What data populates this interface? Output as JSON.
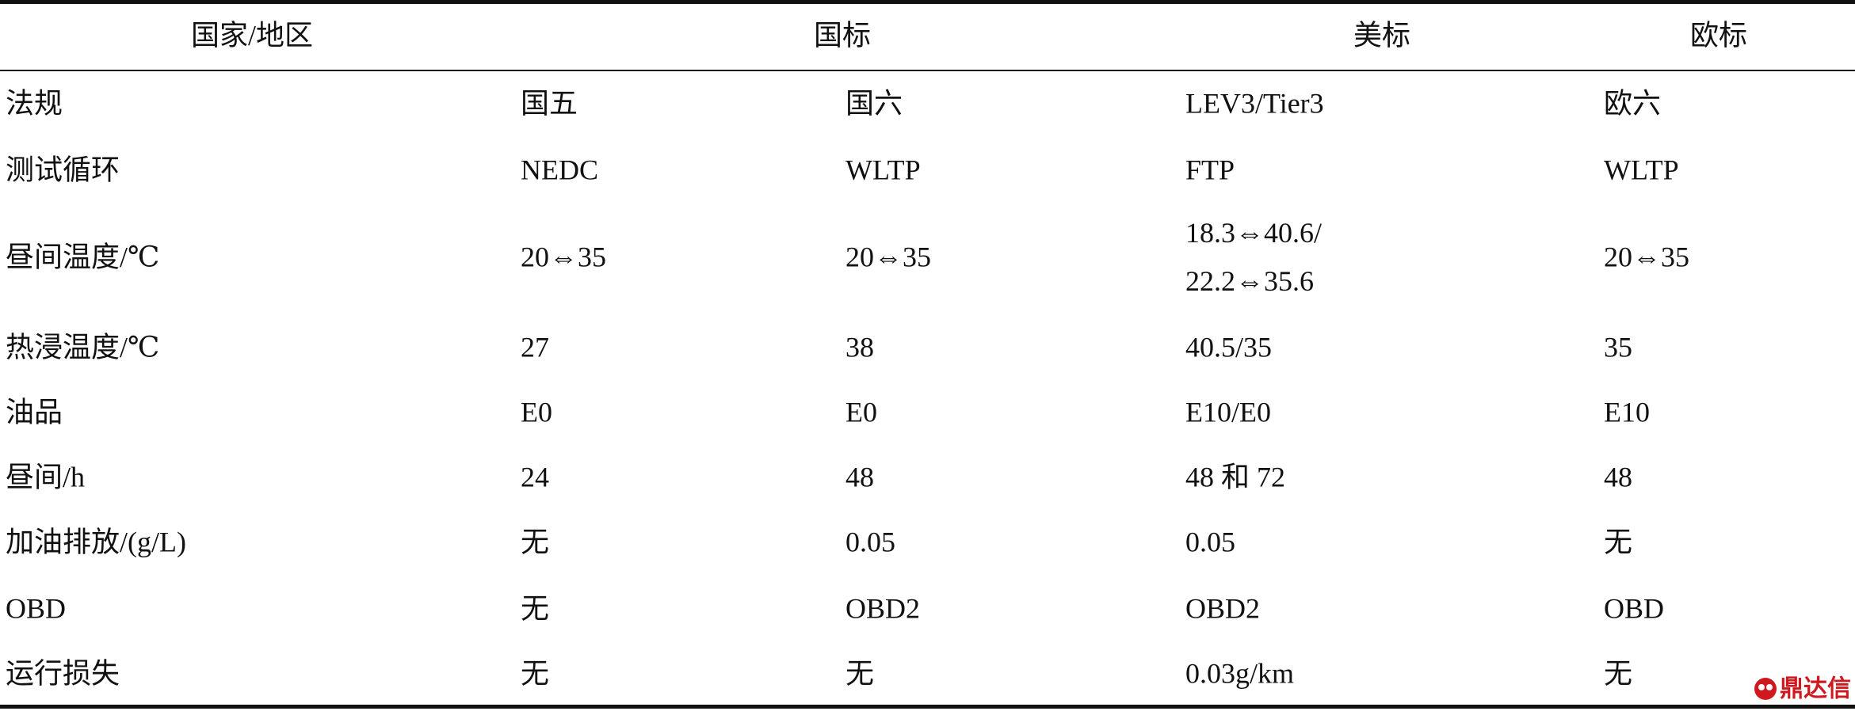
{
  "table": {
    "header": [
      "国家/地区",
      "国标",
      "美标",
      "欧标"
    ],
    "rows": [
      [
        "法规",
        "国五",
        "国六",
        "LEV3/Tier3",
        "欧六"
      ],
      [
        "测试循环",
        "NEDC",
        "WLTP",
        "FTP",
        "WLTP"
      ],
      [
        "昼间温度/℃",
        "20⇔35",
        "20⇔35",
        [
          "18.3⇔40.6/",
          "22.2⇔35.6"
        ],
        "20⇔35"
      ],
      [
        "热浸温度/℃",
        "27",
        "38",
        "40.5/35",
        "35"
      ],
      [
        "油品",
        "E0",
        "E0",
        "E10/E0",
        "E10"
      ],
      [
        "昼间/h",
        "24",
        "48",
        "48 和 72",
        "48"
      ],
      [
        "加油排放/(g/L)",
        "无",
        "0.05",
        "0.05",
        "无"
      ],
      [
        "OBD",
        "无",
        "OBD2",
        "OBD2",
        "OBD"
      ],
      [
        "运行损失",
        "无",
        "无",
        "0.03g/km",
        "无"
      ]
    ]
  },
  "watermark": "鼎达信"
}
